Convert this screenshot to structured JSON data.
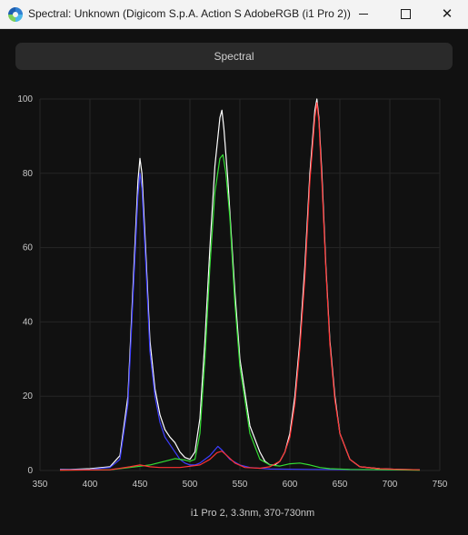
{
  "window": {
    "title": "Spectral: Unknown (Digicom S.p.A. Action S AdobeRGB (i1 Pro 2))",
    "minimize_icon": "minimize-icon",
    "maximize_icon": "maximize-icon",
    "close_icon": "close-icon",
    "close_glyph": "✕"
  },
  "toolbar": {
    "tab_label": "Spectral"
  },
  "chart_data": {
    "type": "line",
    "xlim": [
      350,
      750
    ],
    "ylim": [
      0,
      100
    ],
    "x_ticks": [
      "350",
      "400",
      "450",
      "500",
      "550",
      "600",
      "650",
      "700",
      "750"
    ],
    "y_ticks": [
      "0",
      "20",
      "40",
      "60",
      "80",
      "100"
    ],
    "caption": "i1 Pro 2, 3.3nm, 370-730nm",
    "grid": true,
    "series": [
      {
        "color": "#ffffff",
        "points": [
          [
            370,
            0.3
          ],
          [
            380,
            0.3
          ],
          [
            400,
            0.5
          ],
          [
            420,
            1
          ],
          [
            430,
            4
          ],
          [
            438,
            20
          ],
          [
            444,
            55
          ],
          [
            448,
            78
          ],
          [
            450,
            84
          ],
          [
            452,
            80
          ],
          [
            456,
            58
          ],
          [
            460,
            35
          ],
          [
            465,
            22
          ],
          [
            470,
            15
          ],
          [
            475,
            11
          ],
          [
            480,
            9
          ],
          [
            485,
            7.5
          ],
          [
            490,
            5
          ],
          [
            495,
            3.5
          ],
          [
            500,
            3
          ],
          [
            505,
            5
          ],
          [
            510,
            14
          ],
          [
            515,
            35
          ],
          [
            520,
            60
          ],
          [
            525,
            82
          ],
          [
            530,
            95
          ],
          [
            532,
            97
          ],
          [
            534,
            92
          ],
          [
            538,
            78
          ],
          [
            545,
            48
          ],
          [
            550,
            30
          ],
          [
            560,
            12
          ],
          [
            570,
            5
          ],
          [
            575,
            2.5
          ],
          [
            580,
            1.5
          ],
          [
            585,
            1.5
          ],
          [
            590,
            2.5
          ],
          [
            595,
            5
          ],
          [
            600,
            10
          ],
          [
            605,
            20
          ],
          [
            610,
            35
          ],
          [
            615,
            55
          ],
          [
            620,
            80
          ],
          [
            625,
            97
          ],
          [
            627,
            100
          ],
          [
            629,
            95
          ],
          [
            632,
            80
          ],
          [
            636,
            55
          ],
          [
            640,
            35
          ],
          [
            645,
            20
          ],
          [
            650,
            10
          ],
          [
            660,
            3
          ],
          [
            670,
            1
          ],
          [
            690,
            0.5
          ],
          [
            710,
            0.3
          ],
          [
            730,
            0.2
          ]
        ]
      },
      {
        "color": "#3d3dff",
        "points": [
          [
            370,
            0.2
          ],
          [
            400,
            0.3
          ],
          [
            420,
            0.8
          ],
          [
            430,
            3
          ],
          [
            438,
            18
          ],
          [
            444,
            52
          ],
          [
            448,
            74
          ],
          [
            450,
            80
          ],
          [
            452,
            76
          ],
          [
            456,
            55
          ],
          [
            460,
            32
          ],
          [
            465,
            20
          ],
          [
            470,
            13
          ],
          [
            475,
            9
          ],
          [
            480,
            7
          ],
          [
            485,
            5
          ],
          [
            490,
            3
          ],
          [
            495,
            2
          ],
          [
            500,
            1.5
          ],
          [
            505,
            1.5
          ],
          [
            510,
            2
          ],
          [
            520,
            4
          ],
          [
            528,
            6.5
          ],
          [
            532,
            5.5
          ],
          [
            540,
            3
          ],
          [
            550,
            1.5
          ],
          [
            560,
            0.8
          ],
          [
            580,
            0.4
          ],
          [
            620,
            0.3
          ],
          [
            700,
            0.2
          ],
          [
            730,
            0.2
          ]
        ]
      },
      {
        "color": "#33dd33",
        "points": [
          [
            370,
            0.1
          ],
          [
            420,
            0.2
          ],
          [
            440,
            0.8
          ],
          [
            460,
            1.5
          ],
          [
            475,
            2.5
          ],
          [
            485,
            3.2
          ],
          [
            495,
            2.8
          ],
          [
            500,
            2.5
          ],
          [
            505,
            3
          ],
          [
            510,
            10
          ],
          [
            515,
            30
          ],
          [
            520,
            55
          ],
          [
            525,
            75
          ],
          [
            530,
            84
          ],
          [
            533,
            85
          ],
          [
            536,
            80
          ],
          [
            540,
            68
          ],
          [
            545,
            45
          ],
          [
            550,
            28
          ],
          [
            560,
            10
          ],
          [
            570,
            3
          ],
          [
            580,
            1.5
          ],
          [
            590,
            1.2
          ],
          [
            600,
            1.8
          ],
          [
            610,
            2
          ],
          [
            620,
            1.5
          ],
          [
            630,
            0.8
          ],
          [
            640,
            0.5
          ],
          [
            660,
            0.3
          ],
          [
            700,
            0.2
          ],
          [
            730,
            0.1
          ]
        ]
      },
      {
        "color": "#ff3333",
        "points": [
          [
            370,
            0.1
          ],
          [
            420,
            0.2
          ],
          [
            440,
            1
          ],
          [
            450,
            1.5
          ],
          [
            460,
            1
          ],
          [
            470,
            0.8
          ],
          [
            490,
            0.8
          ],
          [
            510,
            1.5
          ],
          [
            520,
            3
          ],
          [
            527,
            4.8
          ],
          [
            532,
            5.2
          ],
          [
            537,
            4
          ],
          [
            545,
            2
          ],
          [
            555,
            0.8
          ],
          [
            570,
            0.6
          ],
          [
            580,
            1
          ],
          [
            590,
            2.5
          ],
          [
            595,
            5
          ],
          [
            600,
            9
          ],
          [
            605,
            18
          ],
          [
            610,
            33
          ],
          [
            615,
            52
          ],
          [
            620,
            78
          ],
          [
            625,
            95
          ],
          [
            627,
            99
          ],
          [
            629,
            94
          ],
          [
            632,
            78
          ],
          [
            636,
            54
          ],
          [
            640,
            34
          ],
          [
            645,
            19
          ],
          [
            650,
            10
          ],
          [
            660,
            3
          ],
          [
            670,
            1
          ],
          [
            690,
            0.5
          ],
          [
            710,
            0.3
          ],
          [
            730,
            0.2
          ]
        ]
      }
    ]
  }
}
